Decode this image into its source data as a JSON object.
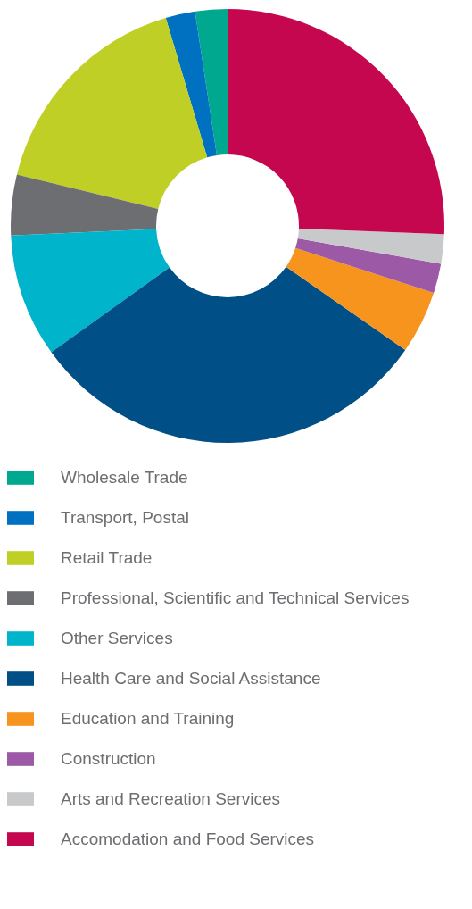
{
  "chart_data": {
    "type": "donut",
    "categories": [
      "Wholesale Trade",
      "Transport, Postal",
      "Retail Trade",
      "Professional, Scientific and Technical Services",
      "Other Services",
      "Health Care and Social Assistance",
      "Education and Training",
      "Construction",
      "Arts and Recreation Services",
      "Accomodation and Food Services"
    ],
    "values": [
      2.4,
      2.2,
      16.6,
      4.5,
      9.2,
      30.4,
      4.7,
      2.2,
      2.2,
      25.6
    ],
    "colors": [
      "#00a88f",
      "#0070c0",
      "#c0cf25",
      "#6d6e71",
      "#00b4cc",
      "#004f86",
      "#f7941d",
      "#9b59a6",
      "#c8c9cb",
      "#c5074f"
    ],
    "legend": "bottom"
  }
}
